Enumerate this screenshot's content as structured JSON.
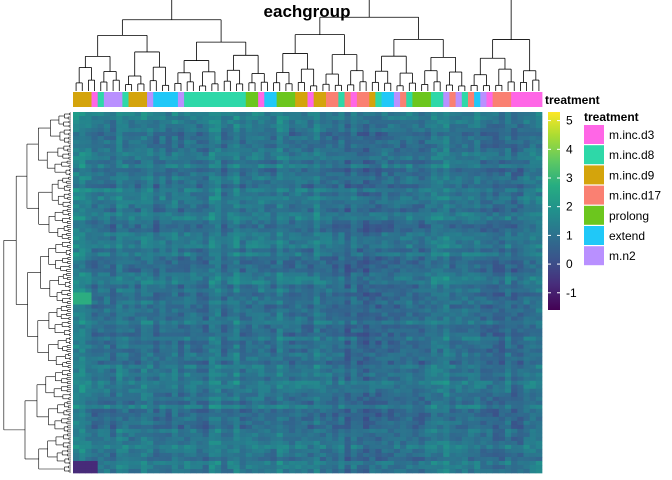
{
  "chart_data": {
    "type": "heatmap",
    "title": "eachgroup",
    "annotation_label": "treatment",
    "legend_title": "treatment",
    "legend_entries": [
      {
        "name": "m.inc.d3",
        "color": "#FF66E6"
      },
      {
        "name": "m.inc.d8",
        "color": "#2ED8A8"
      },
      {
        "name": "m.inc.d9",
        "color": "#D4A40C"
      },
      {
        "name": "m.inc.d17",
        "color": "#FA8072"
      },
      {
        "name": "prolong",
        "color": "#6CC61E"
      },
      {
        "name": "extend",
        "color": "#20C8F8"
      },
      {
        "name": "m.n2",
        "color": "#B990FF"
      }
    ],
    "colorbar": {
      "ticks": [
        "5",
        "4",
        "3",
        "2",
        "1",
        "0",
        "-1"
      ],
      "range": [
        -1.6,
        5.3
      ],
      "palette": "viridis"
    },
    "column_treatments": [
      "m.inc.d9",
      "m.inc.d9",
      "m.inc.d9",
      "m.inc.d3",
      "m.inc.d8",
      "m.n2",
      "m.n2",
      "m.n2",
      "m.inc.d8",
      "m.inc.d9",
      "m.inc.d9",
      "m.inc.d9",
      "m.n2",
      "extend",
      "extend",
      "extend",
      "extend",
      "m.n2",
      "m.inc.d8",
      "m.inc.d8",
      "m.inc.d8",
      "m.inc.d8",
      "m.inc.d8",
      "m.inc.d8",
      "m.inc.d8",
      "m.inc.d8",
      "m.inc.d8",
      "m.inc.d8",
      "prolong",
      "prolong",
      "m.inc.d3",
      "extend",
      "extend",
      "prolong",
      "prolong",
      "prolong",
      "m.inc.d9",
      "m.inc.d9",
      "m.inc.d3",
      "m.inc.d9",
      "m.inc.d9",
      "m.inc.d17",
      "m.inc.d17",
      "m.inc.d8",
      "m.inc.d17",
      "m.inc.d3",
      "m.inc.d17",
      "m.inc.d17",
      "m.inc.d9",
      "m.inc.d8",
      "extend",
      "extend",
      "m.n2",
      "m.inc.d17",
      "m.inc.d8",
      "prolong",
      "prolong",
      "prolong",
      "m.inc.d8",
      "m.inc.d8",
      "m.n2",
      "m.inc.d17",
      "m.n2",
      "m.inc.d8",
      "m.inc.d17",
      "extend",
      "m.n2",
      "m.inc.d3",
      "m.inc.d17",
      "m.inc.d17",
      "m.inc.d17",
      "m.inc.d3",
      "m.inc.d3",
      "m.inc.d3",
      "m.inc.d3",
      "m.inc.d3"
    ]
  }
}
